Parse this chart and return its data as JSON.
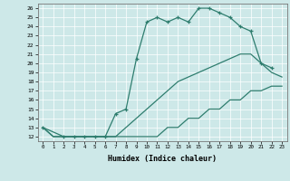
{
  "title": "",
  "xlabel": "Humidex (Indice chaleur)",
  "xlim": [
    -0.5,
    23.5
  ],
  "ylim": [
    11.5,
    26.5
  ],
  "xticks": [
    0,
    1,
    2,
    3,
    4,
    5,
    6,
    7,
    8,
    9,
    10,
    11,
    12,
    13,
    14,
    15,
    16,
    17,
    18,
    19,
    20,
    21,
    22,
    23
  ],
  "yticks": [
    12,
    13,
    14,
    15,
    16,
    17,
    18,
    19,
    20,
    21,
    22,
    23,
    24,
    25,
    26
  ],
  "bg_color": "#cde8e8",
  "line_color": "#2e7d6e",
  "grid_color": "#ffffff",
  "lines": [
    {
      "x": [
        0,
        1,
        2,
        3,
        4,
        5,
        6,
        7,
        8,
        9,
        10,
        11,
        12,
        13,
        14,
        15,
        16,
        17,
        18,
        19,
        20,
        21,
        22,
        23
      ],
      "y": [
        13,
        12,
        12,
        12,
        12,
        12,
        12,
        12,
        12,
        12,
        12,
        12,
        13,
        13,
        14,
        14,
        15,
        15,
        16,
        16,
        17,
        17,
        17.5,
        17.5
      ],
      "marker": false
    },
    {
      "x": [
        0,
        1,
        2,
        3,
        4,
        5,
        6,
        7,
        8,
        9,
        10,
        11,
        12,
        13,
        14,
        15,
        16,
        17,
        18,
        19,
        20,
        21,
        22,
        23
      ],
      "y": [
        13,
        12,
        12,
        12,
        12,
        12,
        12,
        12,
        13,
        14,
        15,
        16,
        17,
        18,
        18.5,
        19,
        19.5,
        20,
        20.5,
        21,
        21,
        20,
        19,
        18.5
      ],
      "marker": false
    },
    {
      "x": [
        0,
        2,
        3,
        4,
        5,
        6,
        7,
        8,
        9,
        10,
        11,
        12,
        13,
        14,
        15,
        16,
        17,
        18,
        19,
        20,
        21,
        22
      ],
      "y": [
        13,
        12,
        12,
        12,
        12,
        12,
        14.5,
        15,
        20.5,
        24.5,
        25,
        24.5,
        25,
        24.5,
        26,
        26,
        25.5,
        25,
        24,
        23.5,
        20,
        19.5
      ],
      "marker": true
    }
  ]
}
